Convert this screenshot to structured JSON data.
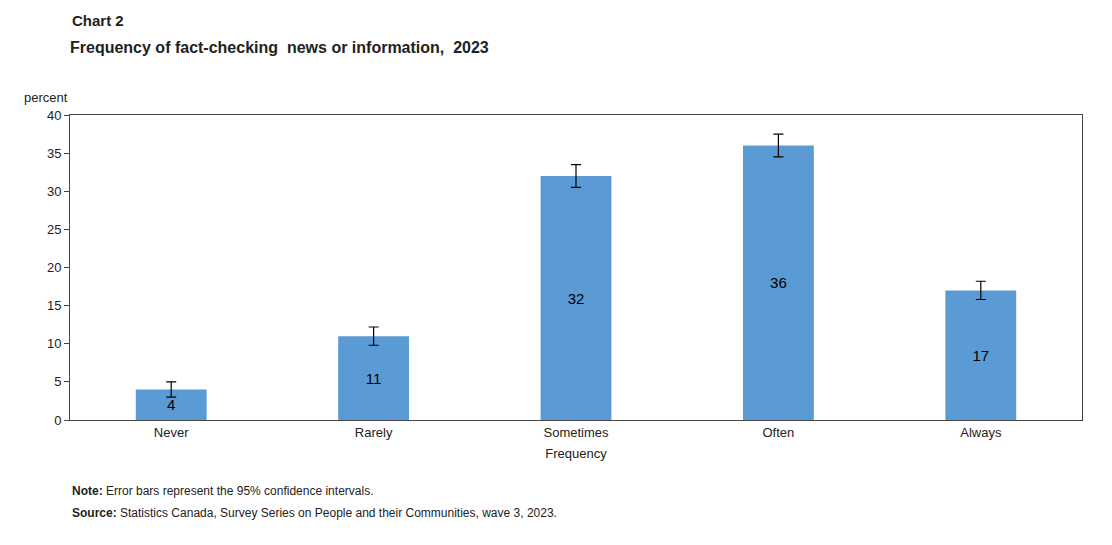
{
  "chart_data": {
    "type": "bar",
    "title": "Frequency of fact-checking  news or information,  2023",
    "annotations": [
      "Chart 2",
      "Note: Error bars represent the 95% confidence intervals.",
      "Source: Statistics Canada, Survey Series on People and their Communities, wave 3, 2023."
    ],
    "xlabel": "Frequency",
    "ylabel": "percent",
    "categories": [
      "Never",
      "Rarely",
      "Sometimes",
      "Often",
      "Always"
    ],
    "values": [
      4,
      11,
      32,
      36,
      17
    ],
    "errors": [
      1.0,
      1.2,
      1.5,
      1.5,
      1.2
    ],
    "color": "#5B9BD5",
    "ylim": [
      0,
      40
    ],
    "yticks": [
      0,
      5,
      10,
      15,
      20,
      25,
      30,
      35,
      40
    ],
    "grid": false,
    "data_labels": true
  }
}
